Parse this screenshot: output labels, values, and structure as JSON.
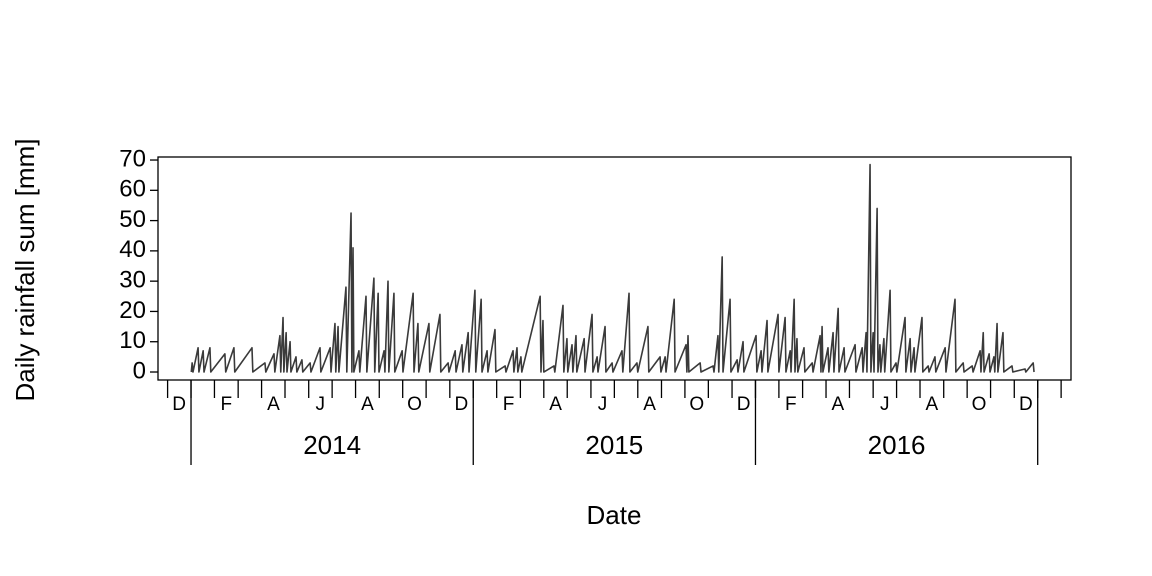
{
  "chart_data": {
    "type": "line",
    "ylabel": "Daily rainfall sum  [mm]",
    "xlabel": "Date",
    "xlim": [
      2013.883,
      2017.118
    ],
    "ylim": [
      -2.64,
      71
    ],
    "yticks": [
      0,
      10,
      20,
      30,
      40,
      50,
      60,
      70
    ],
    "month_ticks": [
      2013.917,
      2014.0,
      2014.083,
      2014.167,
      2014.25,
      2014.333,
      2014.417,
      2014.5,
      2014.583,
      2014.667,
      2014.75,
      2014.833,
      2014.917,
      2015.0,
      2015.083,
      2015.167,
      2015.25,
      2015.333,
      2015.417,
      2015.5,
      2015.583,
      2015.667,
      2015.75,
      2015.833,
      2015.917,
      2016.0,
      2016.083,
      2016.167,
      2016.25,
      2016.333,
      2016.417,
      2016.5,
      2016.583,
      2016.667,
      2016.75,
      2016.833,
      2016.917,
      2017.0,
      2017.083
    ],
    "month_labels": [
      {
        "value": 2013.958,
        "label": "D"
      },
      {
        "value": 2014.125,
        "label": "F"
      },
      {
        "value": 2014.292,
        "label": "A"
      },
      {
        "value": 2014.458,
        "label": "J"
      },
      {
        "value": 2014.625,
        "label": "A"
      },
      {
        "value": 2014.792,
        "label": "O"
      },
      {
        "value": 2014.958,
        "label": "D"
      },
      {
        "value": 2015.125,
        "label": "F"
      },
      {
        "value": 2015.292,
        "label": "A"
      },
      {
        "value": 2015.458,
        "label": "J"
      },
      {
        "value": 2015.625,
        "label": "A"
      },
      {
        "value": 2015.792,
        "label": "O"
      },
      {
        "value": 2015.958,
        "label": "D"
      },
      {
        "value": 2016.125,
        "label": "F"
      },
      {
        "value": 2016.292,
        "label": "A"
      },
      {
        "value": 2016.458,
        "label": "J"
      },
      {
        "value": 2016.625,
        "label": "A"
      },
      {
        "value": 2016.792,
        "label": "O"
      },
      {
        "value": 2016.958,
        "label": "D"
      }
    ],
    "year_ticks": [
      2014,
      2015,
      2016,
      2017
    ],
    "year_labels": [
      {
        "value": 2014.5,
        "label": "2014"
      },
      {
        "value": 2015.5,
        "label": "2015"
      },
      {
        "value": 2016.5,
        "label": "2016"
      }
    ],
    "color": "#3a3a3a",
    "x": [
      2014.001,
      2014.004,
      2014.007,
      2014.025,
      2014.028,
      2014.043,
      2014.046,
      2014.067,
      2014.07,
      2014.12,
      2014.123,
      2014.152,
      2014.155,
      2014.216,
      2014.219,
      2014.262,
      2014.265,
      2014.294,
      2014.297,
      2014.315,
      2014.318,
      2014.326,
      2014.329,
      2014.337,
      2014.34,
      2014.351,
      2014.354,
      2014.372,
      2014.375,
      2014.393,
      2014.396,
      2014.422,
      2014.425,
      2014.457,
      2014.46,
      2014.493,
      2014.496,
      2014.51,
      2014.513,
      2014.521,
      2014.524,
      2014.549,
      2014.552,
      2014.567,
      2014.57,
      2014.574,
      2014.577,
      2014.595,
      2014.598,
      2014.62,
      2014.623,
      2014.648,
      2014.651,
      2014.663,
      2014.666,
      2014.684,
      2014.687,
      2014.698,
      2014.701,
      2014.719,
      2014.722,
      2014.748,
      2014.751,
      2014.787,
      2014.79,
      2014.804,
      2014.807,
      2014.843,
      2014.846,
      2014.882,
      2014.885,
      2014.911,
      2014.914,
      2014.936,
      2014.939,
      2014.96,
      2014.963,
      2014.982,
      2014.985,
      2015.006,
      2015.009,
      2015.028,
      2015.031,
      2015.049,
      2015.052,
      2015.077,
      2015.08,
      2015.113,
      2015.116,
      2015.141,
      2015.144,
      2015.155,
      2015.158,
      2015.169,
      2015.172,
      2015.237,
      2015.24,
      2015.247,
      2015.25,
      2015.286,
      2015.289,
      2015.318,
      2015.321,
      2015.332,
      2015.335,
      2015.35,
      2015.353,
      2015.364,
      2015.367,
      2015.393,
      2015.396,
      2015.421,
      2015.424,
      2015.439,
      2015.442,
      2015.467,
      2015.47,
      2015.492,
      2015.495,
      2015.527,
      2015.53,
      2015.552,
      2015.555,
      2015.58,
      2015.583,
      2015.619,
      2015.622,
      2015.662,
      2015.665,
      2015.68,
      2015.683,
      2015.712,
      2015.715,
      2015.754,
      2015.757,
      2015.761,
      2015.764,
      2015.804,
      2015.807,
      2015.85,
      2015.853,
      2015.867,
      2015.87,
      2015.882,
      2015.885,
      2015.91,
      2015.913,
      2015.935,
      2015.938,
      2015.956,
      2015.959,
      2016.002,
      2016.005,
      2016.02,
      2016.023,
      2016.041,
      2016.044,
      2016.08,
      2016.083,
      2016.105,
      2016.108,
      2016.123,
      2016.126,
      2016.137,
      2016.14,
      2016.147,
      2016.15,
      2016.172,
      2016.175,
      2016.201,
      2016.204,
      2016.229,
      2016.232,
      2016.236,
      2016.239,
      2016.257,
      2016.26,
      2016.275,
      2016.278,
      2016.293,
      2016.296,
      2016.314,
      2016.317,
      2016.353,
      2016.356,
      2016.378,
      2016.381,
      2016.392,
      2016.395,
      2016.406,
      2016.409,
      2016.417,
      2016.42,
      2016.431,
      2016.434,
      2016.441,
      2016.444,
      2016.455,
      2016.458,
      2016.477,
      2016.48,
      2016.498,
      2016.501,
      2016.53,
      2016.533,
      2016.548,
      2016.551,
      2016.562,
      2016.565,
      2016.59,
      2016.593,
      2016.612,
      2016.615,
      2016.636,
      2016.639,
      2016.672,
      2016.675,
      2016.707,
      2016.71,
      2016.736,
      2016.739,
      2016.768,
      2016.771,
      2016.796,
      2016.799,
      2016.807,
      2016.81,
      2016.828,
      2016.831,
      2016.845,
      2016.848,
      2016.856,
      2016.859,
      2016.877,
      2016.88,
      2016.909,
      2016.912,
      2016.955,
      2016.958,
      2016.984,
      2016.987
    ],
    "values": [
      0,
      3,
      0,
      8,
      0,
      7,
      0,
      8,
      0,
      6,
      0,
      8,
      0,
      8,
      0,
      3,
      0,
      6,
      0,
      12,
      0,
      18,
      0,
      13,
      0,
      10,
      0,
      5,
      0,
      4,
      0,
      3,
      0,
      8,
      0,
      8,
      0,
      16,
      0,
      15,
      0,
      28,
      0,
      52.5,
      0,
      41,
      0,
      7,
      0,
      25,
      0,
      31,
      0,
      26,
      0,
      7,
      0,
      30,
      0,
      26,
      0,
      7,
      0,
      26,
      0,
      16,
      0,
      16,
      0,
      19,
      0,
      3,
      0,
      7,
      0,
      9,
      0,
      13,
      0,
      27,
      0,
      24,
      0,
      7,
      0,
      14,
      0,
      2,
      0,
      7,
      0,
      8,
      0,
      5,
      0,
      25,
      0,
      17,
      0,
      2,
      0,
      22,
      0,
      11,
      0,
      9,
      0,
      12,
      0,
      11,
      0,
      19,
      0,
      5,
      0,
      15,
      0,
      3,
      0,
      7,
      0,
      26,
      0,
      3,
      0,
      15,
      0,
      5,
      0,
      5,
      0,
      24,
      0,
      9,
      0,
      12,
      0,
      3,
      0,
      2,
      0,
      12,
      0,
      38,
      0,
      24,
      0,
      4,
      0,
      10,
      0,
      12,
      0,
      7,
      0,
      17,
      0,
      19,
      0,
      18,
      0,
      7,
      0,
      24,
      0,
      11,
      0,
      8,
      0,
      3,
      0,
      12,
      0,
      15,
      0,
      8,
      0,
      13,
      0,
      21,
      0,
      8,
      0,
      9,
      0,
      8,
      0,
      13,
      0,
      68.5,
      0,
      13,
      0,
      54,
      0,
      9,
      0,
      11,
      0,
      27,
      0,
      3,
      0,
      18,
      0,
      11,
      0,
      8,
      0,
      18,
      0,
      2,
      0,
      5,
      0,
      8,
      0,
      24,
      0,
      3,
      0,
      2,
      0,
      7,
      0,
      13,
      0,
      6,
      0,
      5,
      0,
      16,
      0,
      13,
      0,
      2,
      0,
      1,
      0,
      3,
      0
    ]
  }
}
